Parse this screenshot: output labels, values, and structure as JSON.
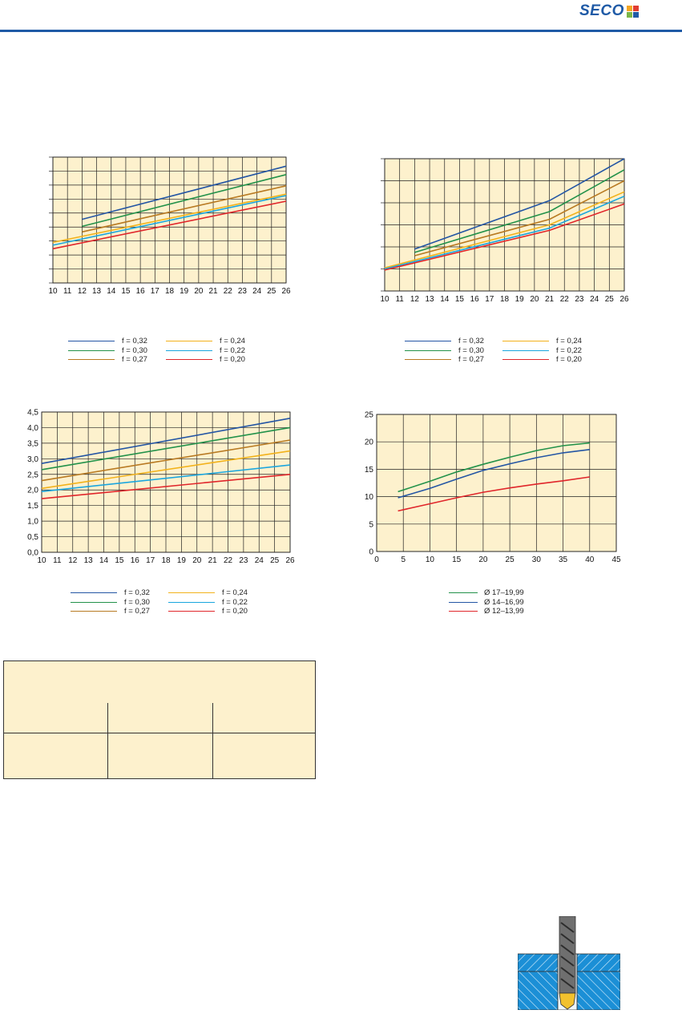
{
  "header": {
    "logo_text": "SECO",
    "brand_color": "#1f5aa6",
    "logo_square_colors": [
      "#f5a623",
      "#e03c31",
      "#7ab648",
      "#1f5aa6"
    ]
  },
  "chart_data": [
    {
      "type": "line",
      "x_ticks": [
        "10",
        "11",
        "12",
        "13",
        "14",
        "15",
        "16",
        "17",
        "18",
        "19",
        "20",
        "21",
        "22",
        "23",
        "24",
        "25",
        "26"
      ],
      "xlim": [
        10,
        26
      ],
      "ylim": [
        0,
        9
      ],
      "y_ticks": [],
      "grid": true,
      "series": [
        {
          "name": "f = 0,32",
          "color": "#2456a4",
          "x": [
            12,
            26
          ],
          "y": [
            4.55,
            8.35
          ]
        },
        {
          "name": "f = 0,30",
          "color": "#22924a",
          "x": [
            12,
            26
          ],
          "y": [
            4.05,
            7.75
          ]
        },
        {
          "name": "f = 0,27",
          "color": "#b87a22",
          "x": [
            12,
            26
          ],
          "y": [
            3.65,
            6.95
          ]
        },
        {
          "name": "f = 0,24",
          "color": "#f2b21b",
          "x": [
            10,
            26
          ],
          "y": [
            2.9,
            6.35
          ]
        },
        {
          "name": "f = 0,22",
          "color": "#1aa6de",
          "x": [
            10,
            26
          ],
          "y": [
            2.7,
            6.25
          ]
        },
        {
          "name": "f = 0,20",
          "color": "#e0262b",
          "x": [
            10,
            26
          ],
          "y": [
            2.45,
            5.85
          ]
        }
      ]
    },
    {
      "type": "line",
      "x_ticks": [
        "10",
        "11",
        "12",
        "13",
        "14",
        "15",
        "16",
        "17",
        "18",
        "19",
        "20",
        "21",
        "22",
        "23",
        "24",
        "25",
        "26"
      ],
      "xlim": [
        10,
        26
      ],
      "ylim": [
        0,
        6
      ],
      "y_ticks": [],
      "grid": true,
      "series": [
        {
          "name": "f = 0,32",
          "color": "#2456a4",
          "x": [
            12,
            21,
            26
          ],
          "y": [
            1.9,
            4.1,
            6.0
          ]
        },
        {
          "name": "f = 0,30",
          "color": "#22924a",
          "x": [
            12,
            21,
            26
          ],
          "y": [
            1.75,
            3.6,
            5.5
          ]
        },
        {
          "name": "f = 0,27",
          "color": "#b87a22",
          "x": [
            12,
            21,
            26
          ],
          "y": [
            1.6,
            3.25,
            5.0
          ]
        },
        {
          "name": "f = 0,24",
          "color": "#f2b21b",
          "x": [
            10,
            21,
            26
          ],
          "y": [
            1.05,
            3.0,
            4.5
          ]
        },
        {
          "name": "f = 0,22",
          "color": "#1aa6de",
          "x": [
            10,
            21,
            26
          ],
          "y": [
            1.0,
            2.85,
            4.3
          ]
        },
        {
          "name": "f = 0,20",
          "color": "#e0262b",
          "x": [
            10,
            21,
            26
          ],
          "y": [
            0.95,
            2.75,
            3.95
          ]
        }
      ]
    },
    {
      "type": "line",
      "x_ticks": [
        "10",
        "11",
        "12",
        "13",
        "14",
        "15",
        "16",
        "17",
        "18",
        "19",
        "20",
        "21",
        "22",
        "23",
        "24",
        "25",
        "26"
      ],
      "y_ticks": [
        "0,0",
        "0,5",
        "1,0",
        "1,5",
        "2,0",
        "2,5",
        "3,0",
        "3,5",
        "4,0",
        "4,5"
      ],
      "xlim": [
        10,
        26
      ],
      "ylim": [
        0,
        4.5
      ],
      "grid": true,
      "series": [
        {
          "name": "f = 0,32",
          "color": "#2456a4",
          "x": [
            10,
            26
          ],
          "y": [
            2.85,
            4.3
          ]
        },
        {
          "name": "f = 0,30",
          "color": "#22924a",
          "x": [
            10,
            26
          ],
          "y": [
            2.65,
            4.0
          ]
        },
        {
          "name": "f = 0,27",
          "color": "#b87a22",
          "x": [
            10,
            26
          ],
          "y": [
            2.3,
            3.6
          ]
        },
        {
          "name": "f = 0,24",
          "color": "#f2b21b",
          "x": [
            10,
            26
          ],
          "y": [
            2.05,
            3.25
          ]
        },
        {
          "name": "f = 0,22",
          "color": "#1aa6de",
          "x": [
            10,
            26
          ],
          "y": [
            1.95,
            2.8
          ]
        },
        {
          "name": "f = 0,20",
          "color": "#e0262b",
          "x": [
            10,
            26
          ],
          "y": [
            1.72,
            2.5
          ]
        }
      ]
    },
    {
      "type": "line",
      "x_ticks": [
        "0",
        "5",
        "10",
        "15",
        "20",
        "25",
        "30",
        "35",
        "40",
        "45"
      ],
      "y_ticks": [
        "0",
        "5",
        "10",
        "15",
        "20",
        "25"
      ],
      "xlim": [
        0,
        45
      ],
      "ylim": [
        0,
        25
      ],
      "grid": true,
      "series": [
        {
          "name": "Ø 17–19,99",
          "color": "#22924a",
          "x": [
            4,
            10,
            15,
            20,
            25,
            30,
            35,
            40
          ],
          "y": [
            10.9,
            12.8,
            14.5,
            15.9,
            17.2,
            18.4,
            19.3,
            19.8
          ]
        },
        {
          "name": "Ø 14–16,99",
          "color": "#2456a4",
          "x": [
            4,
            10,
            15,
            20,
            25,
            30,
            35,
            40
          ],
          "y": [
            9.8,
            11.5,
            13.2,
            14.8,
            16.0,
            17.1,
            18.0,
            18.6
          ]
        },
        {
          "name": "Ø 12–13,99",
          "color": "#e0262b",
          "x": [
            4,
            10,
            15,
            20,
            25,
            30,
            35,
            40
          ],
          "y": [
            7.4,
            8.7,
            9.8,
            10.8,
            11.6,
            12.3,
            12.9,
            13.6
          ]
        }
      ]
    }
  ],
  "legends": [
    [
      "f = 0,32",
      "f = 0,24",
      "f = 0,30",
      "f = 0,22",
      "f = 0,27",
      "f = 0,20"
    ],
    [
      "f = 0,32",
      "f = 0,24",
      "f = 0,30",
      "f = 0,22",
      "f = 0,27",
      "f = 0,20"
    ],
    [
      "f = 0,32",
      "f = 0,24",
      "f = 0,30",
      "f = 0,22",
      "f = 0,27",
      "f = 0,20"
    ],
    [
      "Ø 17–19,99",
      "Ø 14–16,99",
      "Ø 12–13,99"
    ]
  ],
  "colors": {
    "plot_background": "#fdf1cd",
    "grid": "#222222",
    "table_background": "#fdf1cd"
  }
}
